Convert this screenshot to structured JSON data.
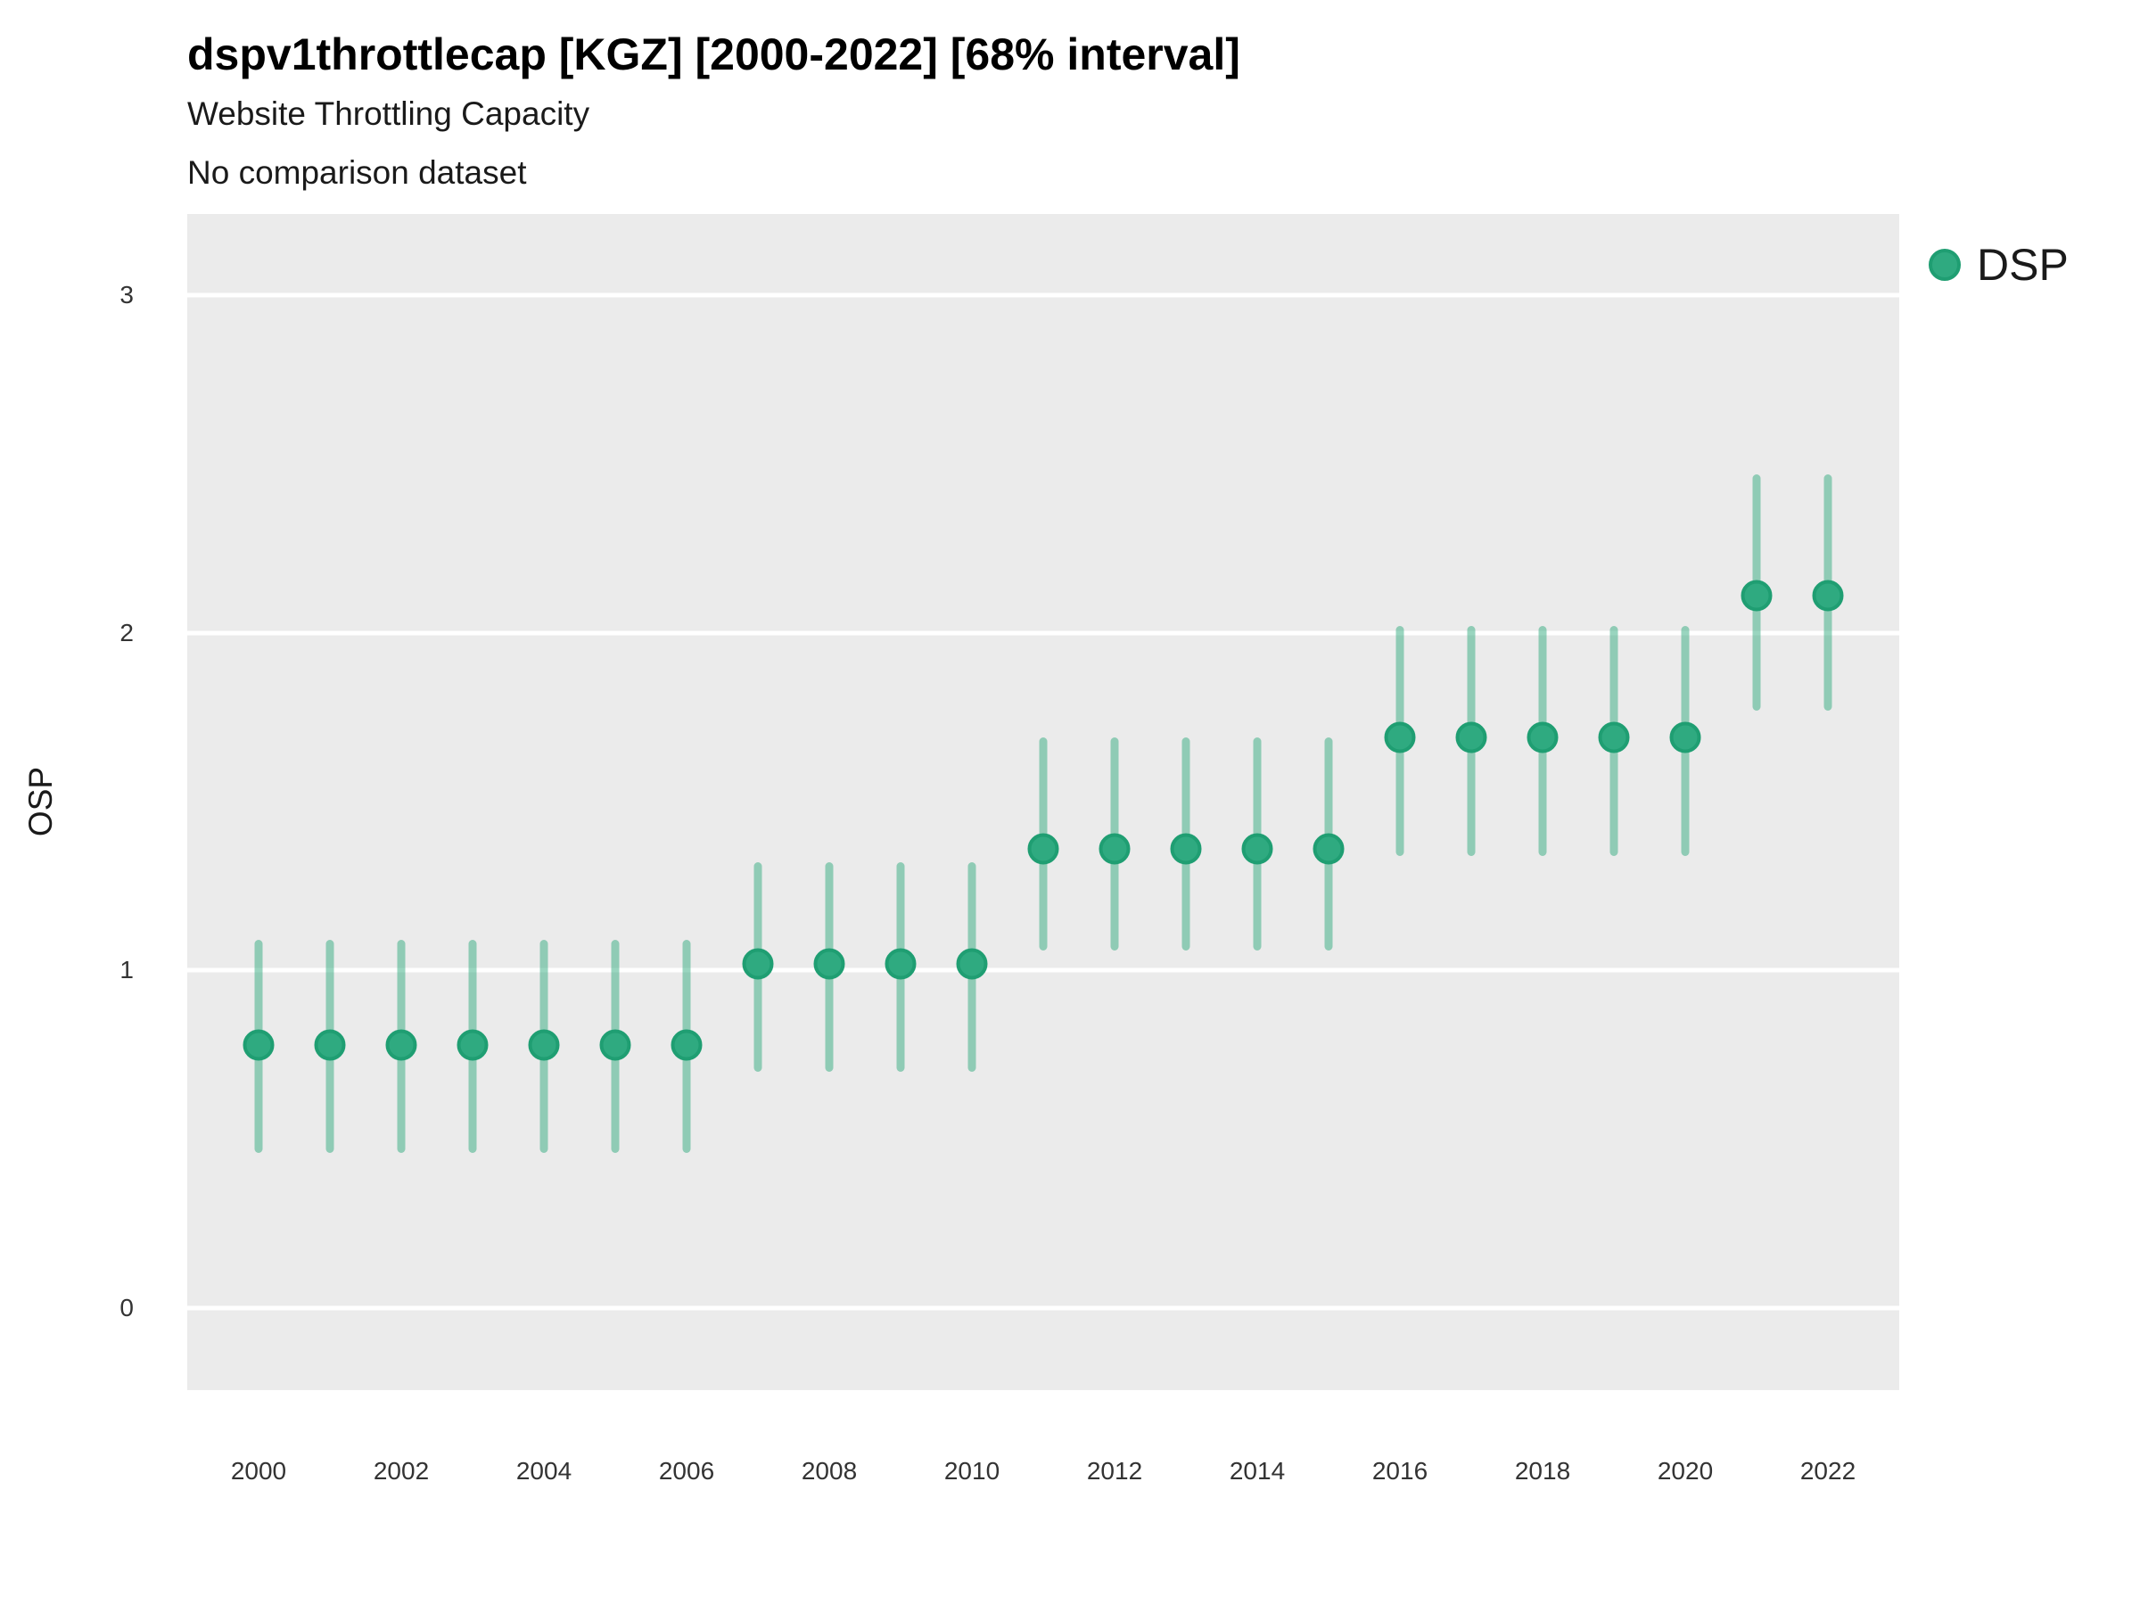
{
  "title": "dspv1throttlecap [KGZ] [2000-2022] [68% interval]",
  "subtitle": "Website Throttling Capacity",
  "note": "No comparison dataset",
  "y_axis": {
    "label": "OSP",
    "ticks": [
      0,
      1,
      2,
      3
    ]
  },
  "x_axis": {
    "ticks": [
      2000,
      2002,
      2004,
      2006,
      2008,
      2010,
      2012,
      2014,
      2016,
      2018,
      2020,
      2022
    ]
  },
  "legend": {
    "label": "DSP"
  },
  "colors": {
    "point_fill": "#2FAA80",
    "point_stroke": "#1F9E72",
    "interval": "rgba(42,168,121,0.48)",
    "panel_background": "#EBEBEB",
    "gridline": "#FFFFFF"
  },
  "chart_data": {
    "type": "scatter",
    "title": "dspv1throttlecap [KGZ] [2000-2022] [68% interval]",
    "subtitle": "Website Throttling Capacity",
    "note": "No comparison dataset",
    "xlabel": "",
    "ylabel": "OSP",
    "legend_position": "right-top",
    "grid": "horizontal-major-only",
    "interval_level": "68%",
    "ylim": [
      -0.243,
      3.24
    ],
    "y_ticks": [
      0,
      1,
      2,
      3
    ],
    "x_ticks": [
      2000,
      2002,
      2004,
      2006,
      2008,
      2010,
      2012,
      2014,
      2016,
      2018,
      2020,
      2022
    ],
    "x": [
      2000,
      2001,
      2002,
      2003,
      2004,
      2005,
      2006,
      2007,
      2008,
      2009,
      2010,
      2011,
      2012,
      2013,
      2014,
      2015,
      2016,
      2017,
      2018,
      2019,
      2020,
      2021,
      2022
    ],
    "series": [
      {
        "name": "DSP",
        "estimate": [
          0.78,
          0.78,
          0.78,
          0.78,
          0.78,
          0.78,
          0.78,
          1.02,
          1.02,
          1.02,
          1.02,
          1.36,
          1.36,
          1.36,
          1.36,
          1.36,
          1.69,
          1.69,
          1.69,
          1.69,
          1.69,
          2.11,
          2.11
        ],
        "lo68": [
          0.46,
          0.46,
          0.46,
          0.46,
          0.46,
          0.46,
          0.46,
          0.7,
          0.7,
          0.7,
          0.7,
          1.06,
          1.06,
          1.06,
          1.06,
          1.06,
          1.34,
          1.34,
          1.34,
          1.34,
          1.34,
          1.77,
          1.77
        ],
        "hi68": [
          1.09,
          1.09,
          1.09,
          1.09,
          1.09,
          1.09,
          1.09,
          1.32,
          1.32,
          1.32,
          1.32,
          1.69,
          1.69,
          1.69,
          1.69,
          1.69,
          2.02,
          2.02,
          2.02,
          2.02,
          2.02,
          2.47,
          2.47
        ]
      }
    ]
  }
}
